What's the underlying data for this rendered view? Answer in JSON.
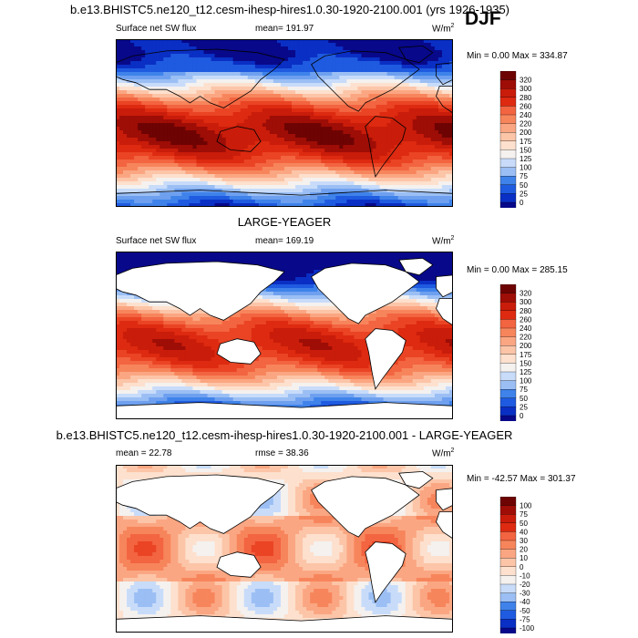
{
  "header": {
    "title": "b.e13.BHISTC5.ne120_t12.cesm-ihesp-hires1.0.30-1920-2100.001 (yrs 1926-1935)",
    "season": "DJF"
  },
  "colors": {
    "sequential": [
      "#08088a",
      "#0a2fc4",
      "#1f5be0",
      "#3f82ea",
      "#6ea0ef",
      "#9bbff4",
      "#c8dcfa",
      "#f4f1ef",
      "#fde0cd",
      "#fcc5a8",
      "#fba682",
      "#f7855c",
      "#f36440",
      "#ea4424",
      "#dd2a10",
      "#c91c0a",
      "#9e0d06",
      "#6e0303"
    ],
    "diverging": [
      "#08088a",
      "#0a2fc4",
      "#1f5be0",
      "#3f82ea",
      "#6ea0ef",
      "#9bbff4",
      "#c8dcfa",
      "#f4f1ef",
      "#fde0cd",
      "#fcc5a8",
      "#fba682",
      "#f7855c",
      "#f36440",
      "#ea4424",
      "#dd2a10",
      "#c91c0a",
      "#9e0d06",
      "#6e0303"
    ],
    "land_mask": "#ffffff",
    "coastline": "#000000"
  },
  "chart_data": [
    {
      "type": "heatmap",
      "title": "",
      "left_label": "Surface net SW flux",
      "mean_label": "mean=",
      "mean_value": "191.97",
      "units_label": "W/m",
      "units_superscript": "2",
      "min_label": "Min =",
      "min_value": "0.00",
      "max_label": "Max =",
      "max_value": "334.87",
      "colorbar_levels": [
        "320",
        "300",
        "280",
        "260",
        "240",
        "220",
        "200",
        "175",
        "150",
        "125",
        "100",
        "75",
        "50",
        "25",
        "0"
      ],
      "land_masked": false
    },
    {
      "type": "heatmap",
      "title": "LARGE-YEAGER",
      "left_label": "Surface net SW flux",
      "mean_label": "mean=",
      "mean_value": "169.19",
      "units_label": "W/m",
      "units_superscript": "2",
      "min_label": "Min =",
      "min_value": "0.00",
      "max_label": "Max =",
      "max_value": "285.15",
      "colorbar_levels": [
        "320",
        "300",
        "280",
        "260",
        "240",
        "220",
        "200",
        "175",
        "150",
        "125",
        "100",
        "75",
        "50",
        "25",
        "0"
      ],
      "land_masked": true
    },
    {
      "type": "heatmap",
      "title": "b.e13.BHISTC5.ne120_t12.cesm-ihesp-hires1.0.30-1920-2100.001 - LARGE-YEAGER",
      "left_label": "mean =",
      "mean_label": "",
      "mean_value": "22.78",
      "rmse_label": "rmse =",
      "rmse_value": "38.36",
      "units_label": "W/m",
      "units_superscript": "2",
      "min_label": "Min =",
      "min_value": "-42.57",
      "max_label": "Max =",
      "max_value": "301.37",
      "colorbar_levels": [
        "100",
        "75",
        "50",
        "40",
        "30",
        "20",
        "10",
        "0",
        "-10",
        "-20",
        "-30",
        "-40",
        "-50",
        "-75",
        "-100"
      ],
      "land_masked": true
    }
  ]
}
